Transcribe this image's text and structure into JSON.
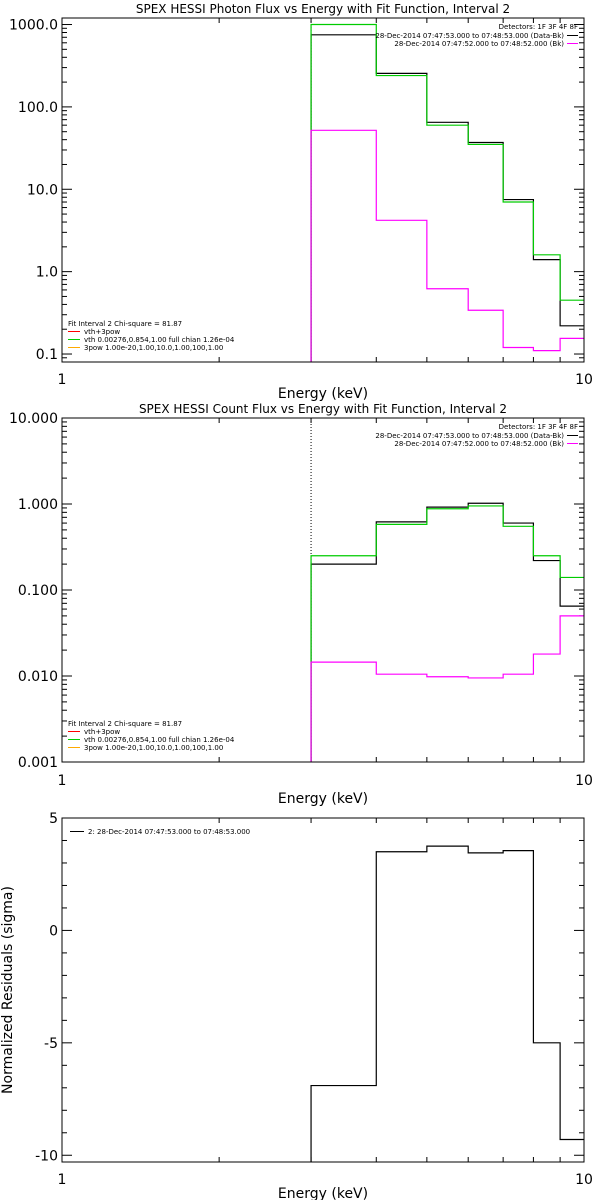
{
  "chart_data": [
    {
      "type": "line",
      "title": "SPEX HESSI Photon Flux vs Energy with Fit Function, Interval 2",
      "xlabel": "Energy (keV)",
      "ylabel": "",
      "xscale": "log",
      "yscale": "log",
      "xlim": [
        1,
        10
      ],
      "ylim": [
        0.08,
        1200
      ],
      "xticks": [
        "1",
        "10"
      ],
      "yticks": [
        {
          "v": 1000,
          "label": "1000.0"
        },
        {
          "v": 100,
          "label": "100.0"
        },
        {
          "v": 10,
          "label": "10.0"
        },
        {
          "v": 1,
          "label": "1.0"
        },
        {
          "v": 0.1,
          "label": "0.1"
        }
      ],
      "info": {
        "detectors": "Detectors: 1F 3F 4F 8F",
        "lines": [
          {
            "text": "28-Dec-2014 07:47:53.000 to 07:48:53.000 (Data-Bk)",
            "color": "#000000"
          },
          {
            "text": "28-Dec-2014 07:47:52.000 to 07:48:52.000 (Bk)",
            "color": "#ff00ff"
          }
        ]
      },
      "fit_legend": {
        "header": "Fit Interval 2   Chi-square = 81.87",
        "items": [
          {
            "text": "vth+3pow",
            "color": "#ff0000"
          },
          {
            "text": "vth 0.00276,0.854,1.00  full chian 1.26e-04",
            "color": "#00cc00"
          },
          {
            "text": "3pow 1.00e-20,1.00,10.0,1.00,100,1.00",
            "color": "#ffaa00"
          }
        ]
      },
      "vline": 3.0,
      "edges": [
        3.0,
        4.0,
        5.0,
        6.0,
        7.0,
        8.0,
        9.0,
        10.0
      ],
      "series": [
        {
          "color": "#000000",
          "values": [
            750,
            255,
            65,
            37,
            7.5,
            1.4,
            0.22
          ]
        },
        {
          "color": "#00cc00",
          "values": [
            1000,
            240,
            60,
            35,
            7.0,
            1.6,
            0.45
          ]
        },
        {
          "color": "#ff00ff",
          "values": [
            52,
            4.2,
            0.62,
            0.34,
            0.12,
            0.11,
            0.155
          ]
        }
      ]
    },
    {
      "type": "line",
      "title": "SPEX HESSI Count Flux vs Energy with Fit Function, Interval 2",
      "xlabel": "Energy (keV)",
      "ylabel": "",
      "xscale": "log",
      "yscale": "log",
      "xlim": [
        1,
        10
      ],
      "ylim": [
        0.001,
        10
      ],
      "xticks": [
        "1",
        "10"
      ],
      "yticks": [
        {
          "v": 10,
          "label": "10.000"
        },
        {
          "v": 1,
          "label": "1.000"
        },
        {
          "v": 0.1,
          "label": "0.100"
        },
        {
          "v": 0.01,
          "label": "0.010"
        },
        {
          "v": 0.001,
          "label": "0.001"
        }
      ],
      "info": {
        "detectors": "Detectors: 1F 3F 4F 8F",
        "lines": [
          {
            "text": "28-Dec-2014 07:47:53.000 to 07:48:53.000 (Data-Bk)",
            "color": "#000000"
          },
          {
            "text": "28-Dec-2014 07:47:52.000 to 07:48:52.000 (Bk)",
            "color": "#ff00ff"
          }
        ]
      },
      "fit_legend": {
        "header": "Fit Interval 2   Chi-square = 81.87",
        "items": [
          {
            "text": "vth+3pow",
            "color": "#ff0000"
          },
          {
            "text": "vth 0.00276,0.854,1.00  full chian 1.26e-04",
            "color": "#00cc00"
          },
          {
            "text": "3pow 1.00e-20,1.00,10.0,1.00,100,1.00",
            "color": "#ffaa00"
          }
        ]
      },
      "vline": 3.0,
      "edges": [
        3.0,
        4.0,
        5.0,
        6.0,
        7.0,
        8.0,
        9.0,
        10.0
      ],
      "series": [
        {
          "color": "#000000",
          "values": [
            0.2,
            0.62,
            0.92,
            1.02,
            0.6,
            0.22,
            0.065
          ]
        },
        {
          "color": "#00cc00",
          "values": [
            0.25,
            0.58,
            0.88,
            0.95,
            0.55,
            0.25,
            0.14
          ]
        },
        {
          "color": "#ff00ff",
          "values": [
            0.0145,
            0.0105,
            0.0098,
            0.0095,
            0.0105,
            0.018,
            0.05
          ]
        }
      ]
    },
    {
      "type": "line",
      "title": "",
      "xlabel": "Energy (keV)",
      "ylabel": "Normalized Residuals (sigma)",
      "xscale": "log",
      "yscale": "linear",
      "xlim": [
        1,
        10
      ],
      "ylim": [
        -10.3,
        5.0
      ],
      "xticks": [
        "1",
        "10"
      ],
      "yticks": [
        {
          "v": 5,
          "label": "5"
        },
        {
          "v": 0,
          "label": "0"
        },
        {
          "v": -5,
          "label": "-5"
        },
        {
          "v": -10,
          "label": "-10"
        }
      ],
      "legend": [
        {
          "text": "2: 28-Dec-2014 07:47:53.000 to 07:48:53.000",
          "color": "#000000"
        }
      ],
      "edges": [
        3.0,
        4.0,
        5.0,
        6.0,
        7.0,
        8.0,
        9.0,
        10.0
      ],
      "series": [
        {
          "color": "#000000",
          "values": [
            -6.9,
            3.5,
            3.75,
            3.45,
            3.55,
            -5.0,
            -9.3
          ]
        }
      ]
    }
  ]
}
